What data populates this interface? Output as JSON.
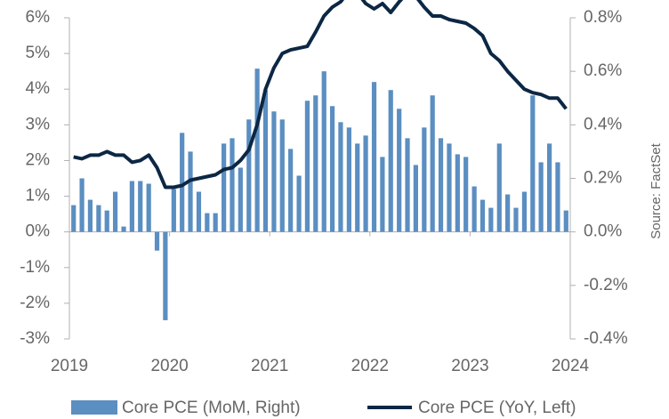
{
  "chart_data": {
    "type": "combo",
    "source": "Source: FactSet",
    "x": [
      2019.042,
      2019.125,
      2019.208,
      2019.292,
      2019.375,
      2019.458,
      2019.542,
      2019.625,
      2019.708,
      2019.792,
      2019.875,
      2019.958,
      2020.042,
      2020.125,
      2020.208,
      2020.292,
      2020.375,
      2020.458,
      2020.542,
      2020.625,
      2020.708,
      2020.792,
      2020.875,
      2020.958,
      2021.042,
      2021.125,
      2021.208,
      2021.292,
      2021.375,
      2021.458,
      2021.542,
      2021.625,
      2021.708,
      2021.792,
      2021.875,
      2021.958,
      2022.042,
      2022.125,
      2022.208,
      2022.292,
      2022.375,
      2022.458,
      2022.542,
      2022.625,
      2022.708,
      2022.792,
      2022.875,
      2022.958,
      2023.042,
      2023.125,
      2023.208,
      2023.292,
      2023.375,
      2023.458,
      2023.542,
      2023.625,
      2023.708,
      2023.792,
      2023.875,
      2023.958
    ],
    "xlim": [
      2019,
      2024
    ],
    "xticks": [
      2019,
      2020,
      2021,
      2022,
      2023,
      2024
    ],
    "ylim": [
      -3,
      6
    ],
    "yticks": [
      {
        "value": -3,
        "label": "-3%"
      },
      {
        "value": -2,
        "label": "-2%"
      },
      {
        "value": -1,
        "label": "-1%"
      },
      {
        "value": 0,
        "label": "0%"
      },
      {
        "value": 1,
        "label": "1%"
      },
      {
        "value": 2,
        "label": "2%"
      },
      {
        "value": 3,
        "label": "3%"
      },
      {
        "value": 4,
        "label": "4%"
      },
      {
        "value": 5,
        "label": "5%"
      },
      {
        "value": 6,
        "label": "6%"
      }
    ],
    "y2lim": [
      -0.4,
      0.8
    ],
    "y2ticks": [
      {
        "value": -0.4,
        "label": "-0.4%"
      },
      {
        "value": -0.2,
        "label": "-0.2%"
      },
      {
        "value": 0,
        "label": "0.0%"
      },
      {
        "value": 0.2,
        "label": "0.2%"
      },
      {
        "value": 0.4,
        "label": "0.4%"
      },
      {
        "value": 0.6,
        "label": "0.6%"
      },
      {
        "value": 0.8,
        "label": "0.8%"
      }
    ],
    "series": [
      {
        "name": "Core PCE (MoM, Right)",
        "type": "bar",
        "axis": "y2",
        "color": "#5b8ec1",
        "values": [
          0.1,
          0.2,
          0.12,
          0.1,
          0.08,
          0.15,
          0.02,
          0.19,
          0.19,
          0.18,
          -0.07,
          -0.33,
          0.16,
          0.37,
          0.3,
          0.15,
          0.07,
          0.07,
          0.33,
          0.35,
          0.24,
          0.42,
          0.61,
          0.53,
          0.45,
          0.42,
          0.31,
          0.21,
          0.49,
          0.51,
          0.6,
          0.47,
          0.41,
          0.39,
          0.33,
          0.36,
          0.56,
          0.28,
          0.53,
          0.46,
          0.35,
          0.25,
          0.39,
          0.51,
          0.35,
          0.33,
          0.29,
          0.28,
          0.17,
          0.12,
          0.09,
          0.33,
          0.14,
          0.09,
          0.15,
          0.51,
          0.26,
          0.33,
          0.26,
          0.08
        ]
      },
      {
        "name": "Core PCE (YoY, Left)",
        "type": "line",
        "axis": "y",
        "color": "#0c2744",
        "values": [
          2.1,
          2.05,
          2.15,
          2.15,
          2.25,
          2.15,
          2.15,
          1.95,
          2.0,
          2.15,
          1.8,
          1.25,
          1.25,
          1.3,
          1.45,
          1.5,
          1.55,
          1.6,
          1.75,
          1.8,
          2.0,
          2.3,
          3.0,
          4.0,
          4.6,
          5.0,
          5.1,
          5.15,
          5.2,
          5.6,
          6.05,
          6.3,
          6.45,
          6.75,
          6.7,
          6.4,
          6.25,
          6.4,
          6.15,
          6.45,
          6.7,
          6.6,
          6.3,
          6.05,
          6.05,
          5.95,
          5.9,
          5.85,
          5.7,
          5.5,
          5.0,
          4.8,
          4.5,
          4.25,
          4.0,
          3.9,
          3.85,
          3.75,
          3.75,
          3.45
        ]
      }
    ]
  }
}
